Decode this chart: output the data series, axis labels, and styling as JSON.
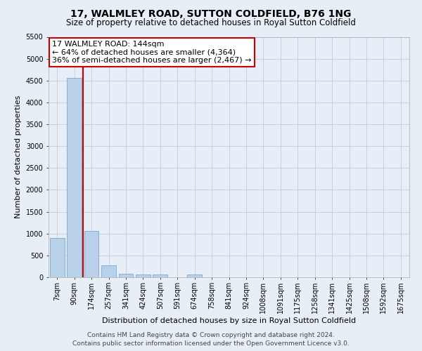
{
  "title": "17, WALMLEY ROAD, SUTTON COLDFIELD, B76 1NG",
  "subtitle": "Size of property relative to detached houses in Royal Sutton Coldfield",
  "xlabel": "Distribution of detached houses by size in Royal Sutton Coldfield",
  "ylabel": "Number of detached properties",
  "footer_line1": "Contains HM Land Registry data © Crown copyright and database right 2024.",
  "footer_line2": "Contains public sector information licensed under the Open Government Licence v3.0.",
  "categories": [
    "7sqm",
    "90sqm",
    "174sqm",
    "257sqm",
    "341sqm",
    "424sqm",
    "507sqm",
    "591sqm",
    "674sqm",
    "758sqm",
    "841sqm",
    "924sqm",
    "1008sqm",
    "1091sqm",
    "1175sqm",
    "1258sqm",
    "1341sqm",
    "1425sqm",
    "1508sqm",
    "1592sqm",
    "1675sqm"
  ],
  "values": [
    900,
    4560,
    1060,
    280,
    75,
    65,
    65,
    0,
    60,
    0,
    0,
    0,
    0,
    0,
    0,
    0,
    0,
    0,
    0,
    0,
    0
  ],
  "bar_color": "#b8d0e8",
  "bar_edge_color": "#7aaad0",
  "vline_color": "#cc0000",
  "vline_x": 1.5,
  "annotation_line1": "17 WALMLEY ROAD: 144sqm",
  "annotation_line2": "← 64% of detached houses are smaller (4,364)",
  "annotation_line3": "36% of semi-detached houses are larger (2,467) →",
  "annotation_box_facecolor": "#ffffff",
  "annotation_box_edgecolor": "#cc0000",
  "ylim": [
    0,
    5500
  ],
  "yticks": [
    0,
    500,
    1000,
    1500,
    2000,
    2500,
    3000,
    3500,
    4000,
    4500,
    5000,
    5500
  ],
  "grid_color": "#c8c8d8",
  "bg_color": "#e8eef5",
  "plot_bg_color": "#e8eef8",
  "title_fontsize": 10,
  "subtitle_fontsize": 8.5,
  "ylabel_fontsize": 8,
  "xlabel_fontsize": 8,
  "tick_fontsize": 7,
  "annotation_fontsize": 8,
  "footer_fontsize": 6.5
}
